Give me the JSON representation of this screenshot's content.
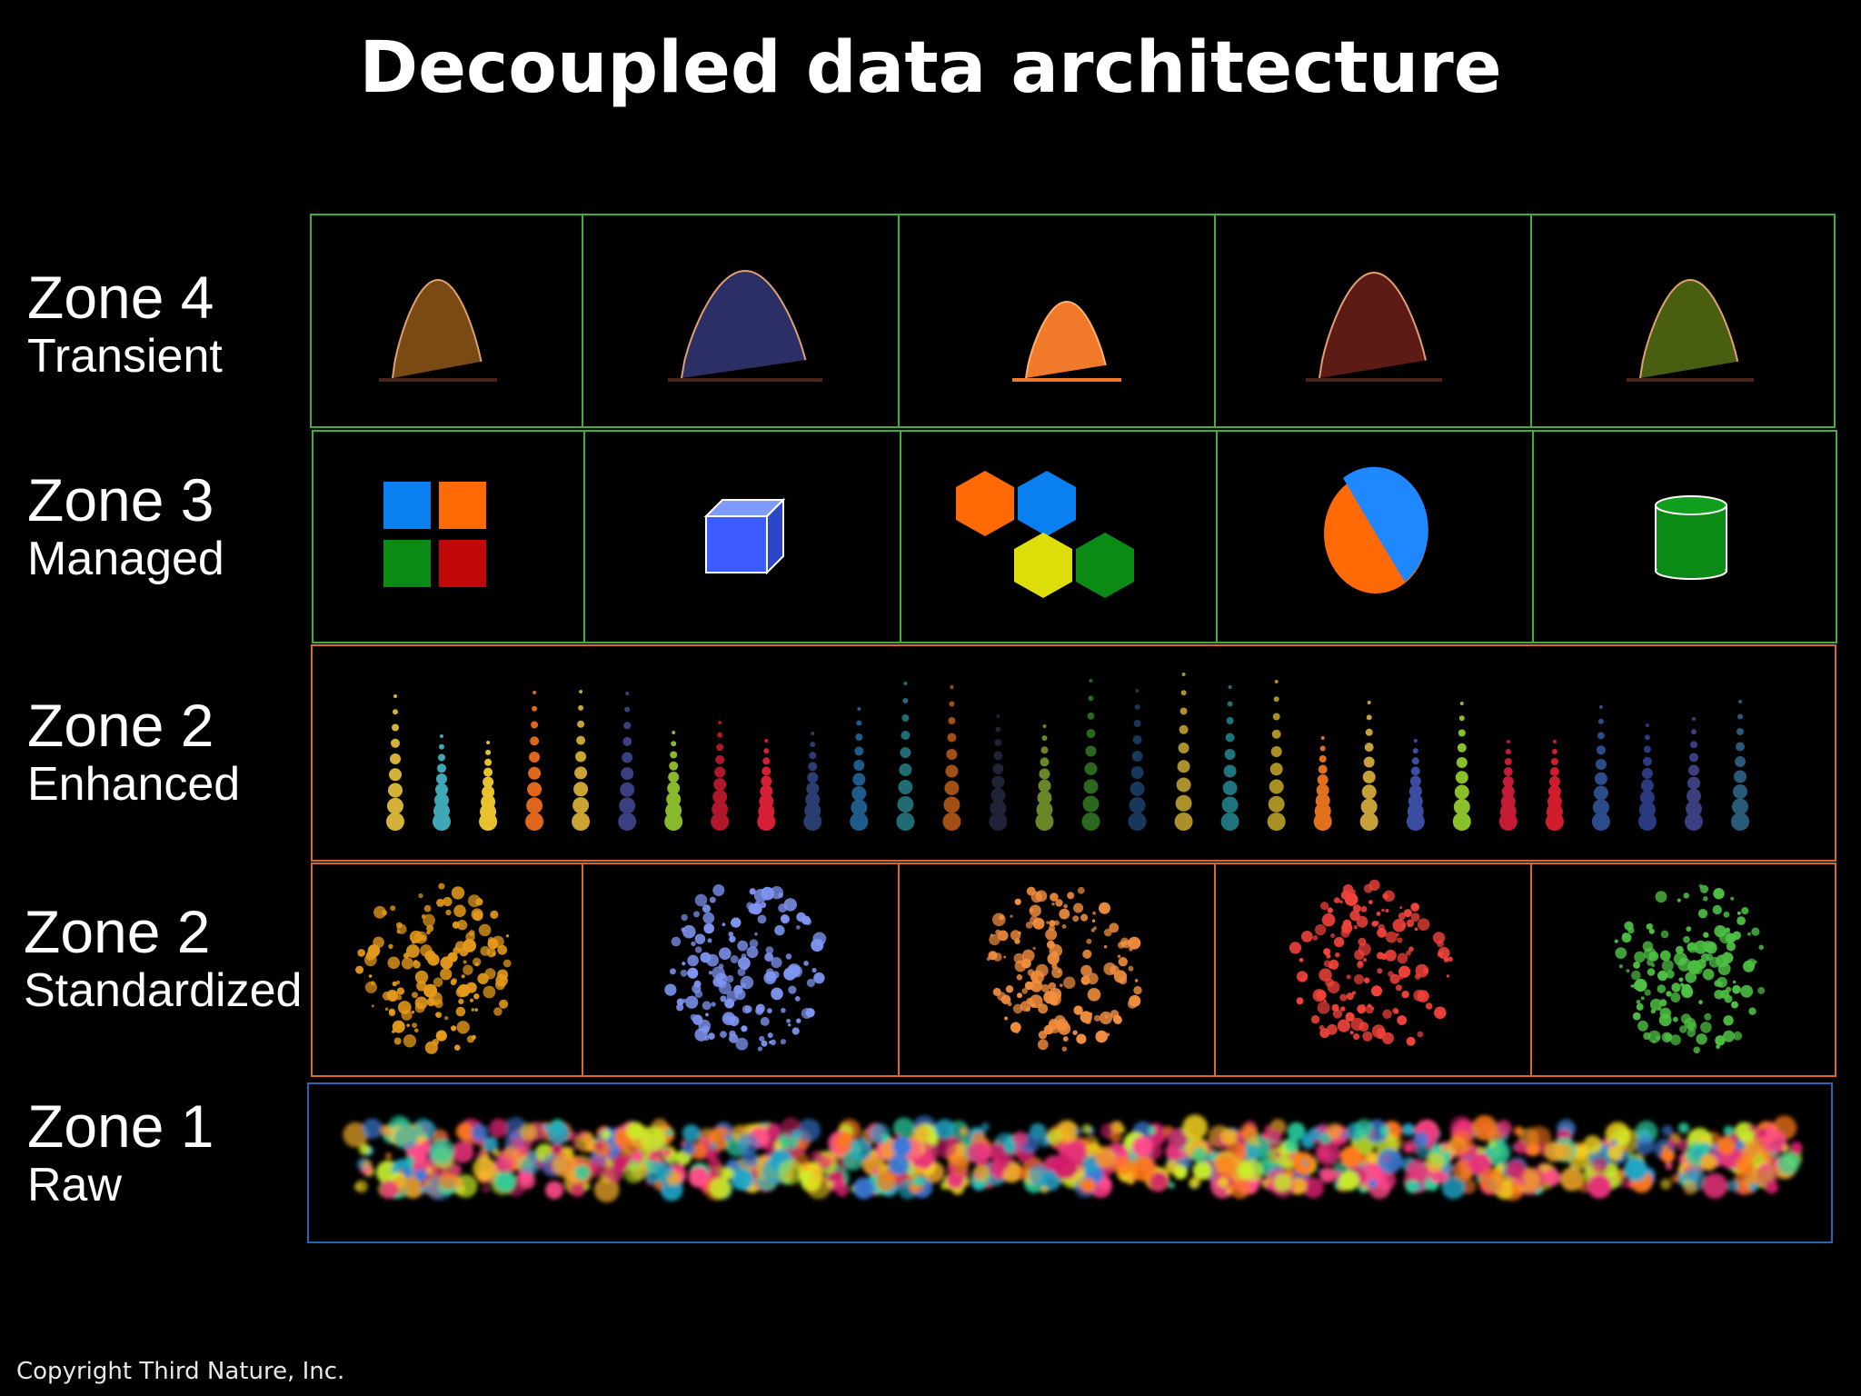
{
  "title": "Decoupled data architecture",
  "zones": [
    {
      "id": "zone4",
      "name": "Zone 4",
      "desc": "Transient",
      "border": "#3fae3a"
    },
    {
      "id": "zone3",
      "name": "Zone 3",
      "desc": "Managed",
      "border": "#3fae3a"
    },
    {
      "id": "zone2e",
      "name": "Zone 2",
      "desc": "Enhanced",
      "border": "#d9692a"
    },
    {
      "id": "zone2s",
      "name": "Zone 2",
      "desc": "Standardized",
      "border": "#d9692a"
    },
    {
      "id": "zone1",
      "name": "Zone 1",
      "desc": "Raw",
      "border": "#2a64b5"
    }
  ],
  "transient_curve_colors": [
    "#7a4a14",
    "#2c2f66",
    "#f07a2a",
    "#5e1b16",
    "#4a5e12"
  ],
  "managed_icons": [
    "quad-squares-icon",
    "cube-icon",
    "hexagon-cluster-icon",
    "pie-icon",
    "cylinder-icon"
  ],
  "standardized_cluster_colors": [
    "#e59a1b",
    "#7f95f2",
    "#f28e3e",
    "#f2433a",
    "#4ec043"
  ],
  "enhanced_column_colors": [
    "#d4b23a",
    "#3fa7b6",
    "#e8c22c",
    "#e0661c",
    "#c9a435",
    "#3a3f80",
    "#89b82a",
    "#b0172b",
    "#d61f34",
    "#2a3d70",
    "#1f5b8a",
    "#2d8f9a",
    "#d96a1b",
    "#2a2f4a",
    "#8bb534",
    "#3a8a2a",
    "#1f4a7a",
    "#e6c23a",
    "#2a9aa5",
    "#e2c030",
    "#e0701c",
    "#c8a03a",
    "#3a4da0",
    "#89c02a",
    "#c41a35",
    "#d01c2c",
    "#2a4d8a",
    "#2a3a80",
    "#3b3f80",
    "#2a5a7a"
  ],
  "copyright": "Copyright Third Nature, Inc."
}
